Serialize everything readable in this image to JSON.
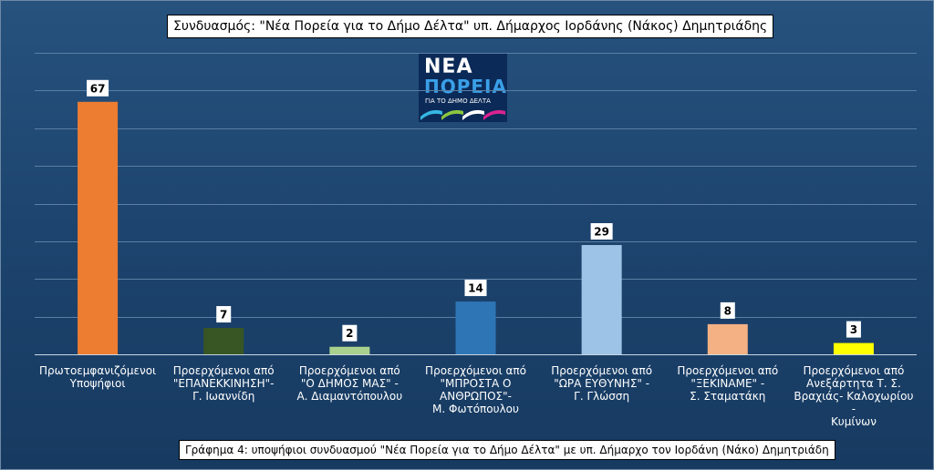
{
  "title": "Συνδυασμός: \"Νέα Πορεία για το Δήμο Δέλτα\"  υπ. Δήμαρχος  Ιορδάνης (Νάκος) Δημητριάδης",
  "caption": "Γράφημα 4: υποψήφιοι συνδυασμού \"Νέα Πορεία για το Δήμο Δέλτα\"  με υπ. Δήμαρχο  τον Ιορδάνη (Νάκο) Δημητριάδη",
  "logo": {
    "line1": "ΝΕΑ",
    "line2": "ΠΟΡΕΙΑ",
    "line3": "ΓΙΑ ΤΟ ΔΗΜΟ ΔΕΛΤΑ",
    "stripe_colors": [
      "#37b6e3",
      "#8cc63f",
      "#ffffff",
      "#d9238f"
    ]
  },
  "chart_data": {
    "type": "bar",
    "categories": [
      [
        "Πρωτοεμφανιζόμενοι",
        "Υποψήφιοι"
      ],
      [
        "Προερχόμενοι από",
        "\"ΕΠΑΝΕΚΚΙΝΗΣΗ\"-",
        "Γ. Ιωαννίδη"
      ],
      [
        "Προερχόμενοι από",
        "\"Ο ΔΗΜΟΣ ΜΑΣ\" -",
        "Α. Διαμαντόπουλου"
      ],
      [
        "Προερχόμενοι από",
        "\"ΜΠΡΟΣΤΑ Ο",
        "ΑΝΘΡΩΠΟΣ\"-",
        "Μ. Φωτόπουλου"
      ],
      [
        "Προερχόμενοι από",
        "\"ΩΡΑ ΕΥΘΥΝΗΣ\" -",
        "Γ. Γλώσση"
      ],
      [
        "Προερχόμενοι από",
        "\"ΞΕΚΙΝΑΜΕ\" -",
        "Σ. Σταματάκη"
      ],
      [
        "Προερχόμενοι από",
        "Ανεξάρτητα Τ. Σ.",
        "Βραχιάς- Καλοχωρίου -",
        "Κυμίνων"
      ]
    ],
    "values": [
      67,
      7,
      2,
      14,
      29,
      8,
      3
    ],
    "value_labels": [
      "67",
      "7",
      "2",
      "14",
      "29",
      "8",
      "3"
    ],
    "colors": [
      "#ed7d31",
      "#375623",
      "#a9d18e",
      "#2e75b6",
      "#9dc3e6",
      "#f4b183",
      "#ffff00"
    ],
    "ylim": [
      0,
      80
    ],
    "grid": true,
    "legend": "none"
  }
}
